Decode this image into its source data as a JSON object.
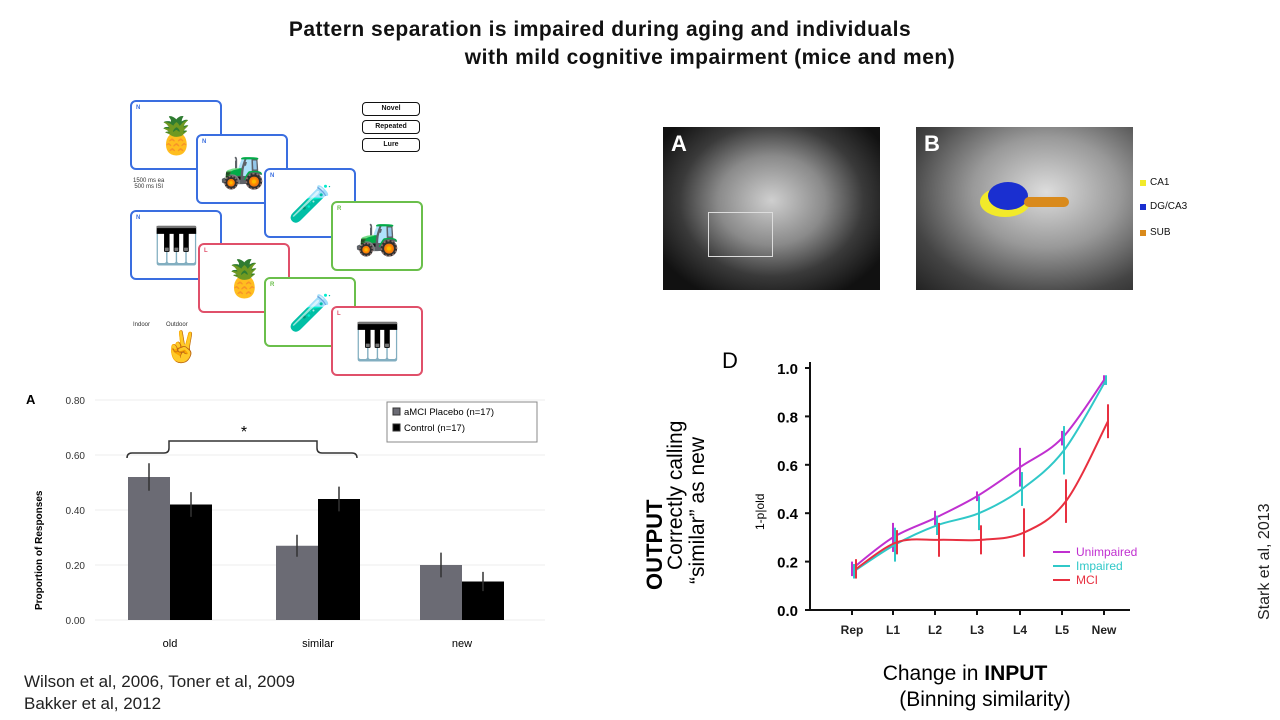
{
  "title": {
    "line1": "Pattern separation is impaired during aging and individuals",
    "line2": "with mild cognitive impairment (mice and men)"
  },
  "task_diagram": {
    "legend": [
      {
        "label": "Novel",
        "color": "#3a6ee0"
      },
      {
        "label": "Repeated",
        "color": "#6abf4b"
      },
      {
        "label": "Lure",
        "color": "#e0506a"
      }
    ],
    "timing": [
      "1500 ms ea",
      "500 ms ISI"
    ],
    "response_labels": [
      "Indoor",
      "Outdoor"
    ],
    "cards": [
      {
        "tag": "N",
        "object": "pineapple",
        "type": "Novel"
      },
      {
        "tag": "N",
        "object": "tractor",
        "type": "Novel"
      },
      {
        "tag": "N",
        "object": "beakers",
        "type": "Novel"
      },
      {
        "tag": "R",
        "object": "tractor",
        "type": "Repeated"
      },
      {
        "tag": "N",
        "object": "piano",
        "type": "Novel"
      },
      {
        "tag": "L",
        "object": "pineapple",
        "type": "Lure"
      },
      {
        "tag": "R",
        "object": "beakers",
        "type": "Repeated"
      },
      {
        "tag": "L",
        "object": "piano",
        "type": "Lure"
      }
    ]
  },
  "brain": {
    "panel_a": "A",
    "panel_b": "B",
    "regions": [
      {
        "label": "CA1",
        "color": "#f2ea2a"
      },
      {
        "label": "DG/CA3",
        "color": "#1a2fd0"
      },
      {
        "label": "SUB",
        "color": "#d98a1c"
      }
    ]
  },
  "chart_data": [
    {
      "type": "bar",
      "panel": "A",
      "categories": [
        "old",
        "similar",
        "new"
      ],
      "ylabel": "Proportion of Responses",
      "ylim": [
        0,
        0.8
      ],
      "yticks": [
        "0.00",
        "0.20",
        "0.40",
        "0.60",
        "0.80"
      ],
      "series": [
        {
          "name": "aMCI Placebo (n=17)",
          "color": "#6b6b74",
          "values": [
            0.52,
            0.27,
            0.2
          ],
          "errors": [
            0.05,
            0.04,
            0.045
          ]
        },
        {
          "name": "Control (n=17)",
          "color": "#000000",
          "values": [
            0.42,
            0.44,
            0.14
          ],
          "errors": [
            0.045,
            0.045,
            0.035
          ]
        }
      ],
      "annotation": "*",
      "legend": "top-right"
    },
    {
      "type": "line",
      "panel": "D",
      "categories": [
        "Rep",
        "L1",
        "L2",
        "L3",
        "L4",
        "L5",
        "New"
      ],
      "ylabel": "1-p|old",
      "ylim": [
        0,
        1.0
      ],
      "yticks": [
        "0.0",
        "0.2",
        "0.4",
        "0.6",
        "0.8",
        "1.0"
      ],
      "xlabel": [
        "Change in ",
        "INPUT",
        "(Binning similarity)"
      ],
      "outer_ylabel": [
        "OUTPUT",
        "Correctly calling",
        "“similar” as new"
      ],
      "series": [
        {
          "name": "Unimpaired",
          "color": "#c030d0",
          "values": [
            0.17,
            0.3,
            0.38,
            0.47,
            0.59,
            0.71,
            0.95
          ],
          "errors": [
            0.03,
            0.06,
            0.03,
            0.02,
            0.08,
            0.03,
            0.02
          ]
        },
        {
          "name": "Impaired",
          "color": "#30c8c8",
          "values": [
            0.16,
            0.27,
            0.35,
            0.4,
            0.5,
            0.66,
            0.95
          ],
          "errors": [
            0.03,
            0.07,
            0.04,
            0.07,
            0.07,
            0.1,
            0.02
          ]
        },
        {
          "name": "MCI",
          "color": "#e83040",
          "values": [
            0.17,
            0.28,
            0.29,
            0.29,
            0.32,
            0.45,
            0.78
          ],
          "errors": [
            0.04,
            0.05,
            0.07,
            0.06,
            0.1,
            0.09,
            0.07
          ]
        }
      ],
      "legend": "bottom-right"
    }
  ],
  "citations": {
    "left_line1": "Wilson et al, 2006, Toner et al, 2009",
    "left_line2": "Bakker et al, 2012",
    "right": "Stark et al, 2013"
  }
}
